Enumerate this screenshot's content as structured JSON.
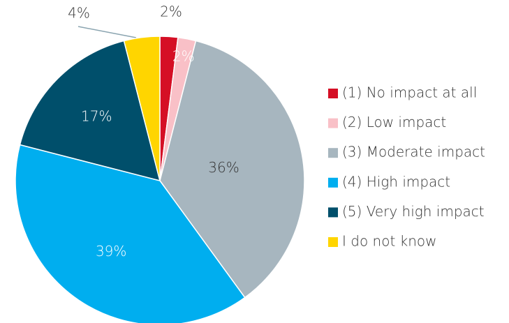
{
  "chart_data": {
    "type": "pie",
    "categories": [
      "(1) No impact at all",
      "(2) Low impact",
      "(3) Moderate impact",
      "(4) High impact",
      "(5) Very high impact",
      "I do not know"
    ],
    "values": [
      2,
      2,
      36,
      39,
      17,
      4
    ],
    "value_labels": [
      "2%",
      "2%",
      "36%",
      "39%",
      "17%",
      "4%"
    ],
    "colors": [
      "#d50f25",
      "#f9c0c7",
      "#a7b6bf",
      "#00aeef",
      "#004f6b",
      "#ffd500"
    ],
    "legend": "right"
  }
}
